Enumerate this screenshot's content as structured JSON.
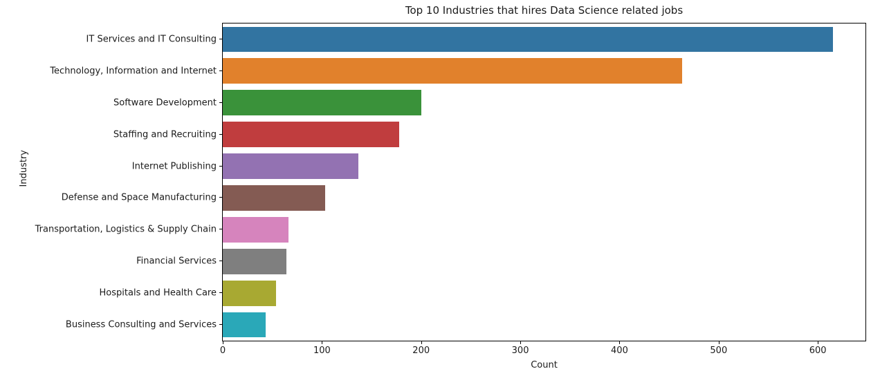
{
  "chart_data": {
    "type": "bar",
    "orientation": "horizontal",
    "title": "Top 10 Industries that hires Data Science related jobs",
    "xlabel": "Count",
    "ylabel": "Industry",
    "categories": [
      "IT Services and IT Consulting",
      "Technology, Information and Internet",
      "Software Development",
      "Staffing and Recruiting",
      "Internet Publishing",
      "Defense and Space Manufacturing",
      "Transportation, Logistics & Supply Chain",
      "Financial Services",
      "Hospitals and Health Care",
      "Business Consulting and Services"
    ],
    "values": [
      615,
      463,
      200,
      178,
      137,
      103,
      66,
      64,
      54,
      43
    ],
    "bar_colors": [
      "#3274a1",
      "#e1812c",
      "#3a923a",
      "#c03d3e",
      "#9372b2",
      "#845b53",
      "#d684bd",
      "#7f7f7f",
      "#a8a932",
      "#2aa8b8"
    ],
    "xlim": [
      0,
      648
    ],
    "xticks": [
      0,
      100,
      200,
      300,
      400,
      500,
      600
    ],
    "grid": false,
    "legend_position": "none",
    "bar_fraction_of_band": 0.8,
    "axis_color": "#000000",
    "background_color": "#ffffff"
  }
}
